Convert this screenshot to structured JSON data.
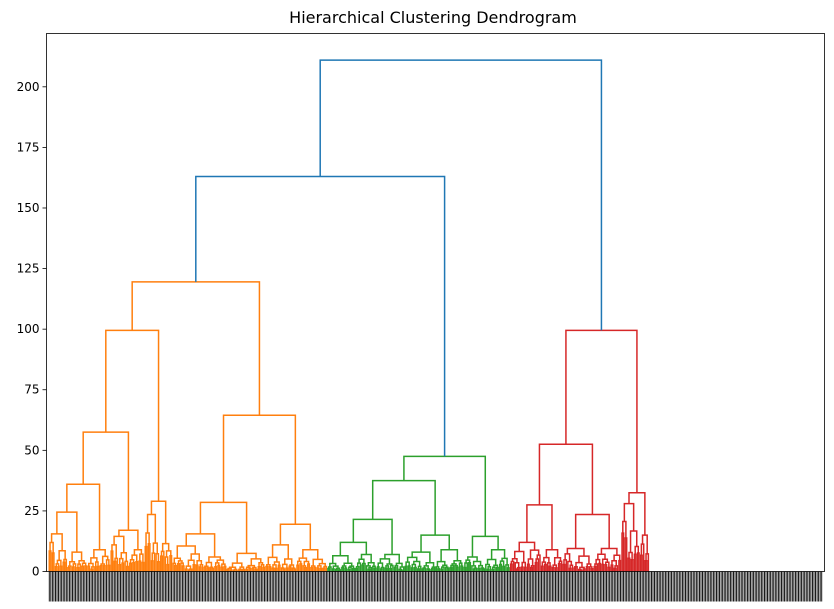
{
  "chart_data": {
    "type": "dendrogram",
    "title": "Hierarchical Clustering Dendrogram",
    "xlabel": "",
    "ylabel": "",
    "ylim": [
      0,
      222
    ],
    "yticks": [
      0,
      25,
      50,
      75,
      100,
      125,
      150,
      175,
      200
    ],
    "leaf_count": 500,
    "grid": false,
    "colors": {
      "link_above_threshold": "#1f77b4",
      "cluster_1": "#ff7f0e",
      "cluster_2": "#2ca02c",
      "cluster_3": "#d62728"
    },
    "clusters": [
      {
        "color": "#ff7f0e",
        "leaf_range": [
          0,
          215
        ],
        "merges": [
          {
            "left": 0,
            "right": 28,
            "height": 119.5
          },
          {
            "left": 0,
            "right": 0,
            "height": 99.5
          },
          {
            "left": 0,
            "right": 0,
            "height": 64.5
          },
          {
            "left": 0,
            "right": 0,
            "height": 57.5
          },
          {
            "left": 0,
            "right": 0,
            "height": 36.0
          },
          {
            "left": 0,
            "right": 0,
            "height": 29.0
          },
          {
            "left": 0,
            "right": 0,
            "height": 28.5
          },
          {
            "left": 0,
            "right": 0,
            "height": 24.5
          },
          {
            "left": 0,
            "right": 0,
            "height": 23.5
          },
          {
            "left": 0,
            "right": 0,
            "height": 19.5
          },
          {
            "left": 0,
            "right": 0,
            "height": 15.5
          },
          {
            "left": 0,
            "right": 0,
            "height": 15.5
          }
        ]
      },
      {
        "color": "#2ca02c",
        "leaf_range": [
          215,
          380
        ],
        "merges": [
          {
            "height": 47.5
          },
          {
            "height": 37.5
          },
          {
            "height": 21.5
          },
          {
            "height": 15.0
          },
          {
            "height": 14.5
          },
          {
            "height": 12.0
          }
        ]
      },
      {
        "color": "#d62728",
        "leaf_range": [
          380,
          500
        ],
        "merges": [
          {
            "height": 99.5
          },
          {
            "height": 52.5
          },
          {
            "height": 32.5
          },
          {
            "height": 27.5
          },
          {
            "height": 23.5
          }
        ]
      }
    ],
    "top_links": [
      {
        "name": "merge-orange-green",
        "height": 163.0
      },
      {
        "name": "merge-root",
        "height": 211.0
      }
    ]
  }
}
